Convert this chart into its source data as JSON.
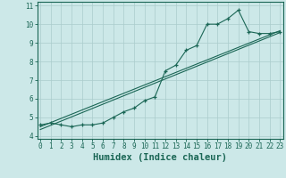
{
  "xlabel": "Humidex (Indice chaleur)",
  "background_color": "#cce8e8",
  "grid_color": "#aacccc",
  "line_color": "#1a6655",
  "x_ticks": [
    0,
    1,
    2,
    3,
    4,
    5,
    6,
    7,
    8,
    9,
    10,
    11,
    12,
    13,
    14,
    15,
    16,
    17,
    18,
    19,
    20,
    21,
    22,
    23
  ],
  "y_ticks": [
    4,
    5,
    6,
    7,
    8,
    9,
    10,
    11
  ],
  "xlim": [
    -0.3,
    23.3
  ],
  "ylim": [
    3.85,
    11.2
  ],
  "series1_x": [
    0,
    1,
    2,
    3,
    4,
    5,
    6,
    7,
    8,
    9,
    10,
    11,
    12,
    13,
    14,
    15,
    16,
    17,
    18,
    19,
    20,
    21,
    22,
    23
  ],
  "series1_y": [
    4.6,
    4.7,
    4.6,
    4.5,
    4.6,
    4.6,
    4.7,
    5.0,
    5.3,
    5.5,
    5.9,
    6.1,
    7.5,
    7.8,
    8.6,
    8.85,
    10.0,
    10.0,
    10.3,
    10.75,
    9.6,
    9.5,
    9.5,
    9.6
  ],
  "series2_x": [
    0,
    23
  ],
  "series2_y": [
    4.5,
    9.65
  ],
  "series3_x": [
    0,
    23
  ],
  "series3_y": [
    4.35,
    9.55
  ],
  "tick_fontsize": 5.5,
  "xlabel_fontsize": 7.5
}
